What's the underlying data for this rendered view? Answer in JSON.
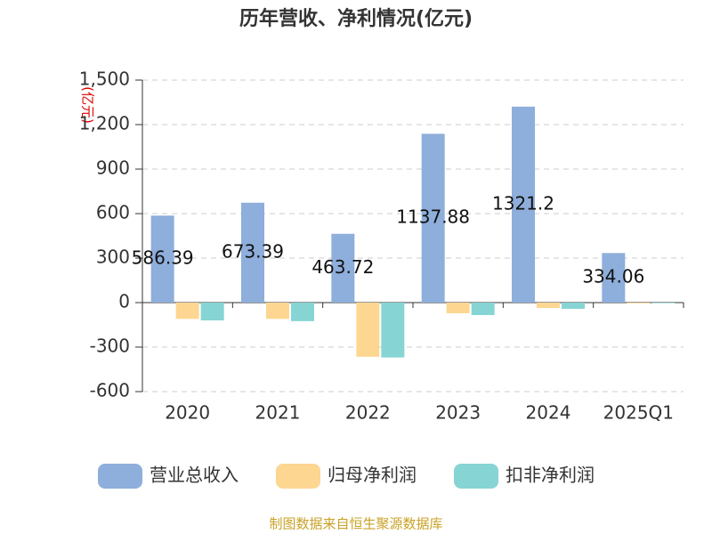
{
  "chart_data": {
    "type": "bar",
    "title": "历年营收、净利情况(亿元)",
    "y_label": "(亿元)",
    "categories": [
      "2020",
      "2021",
      "2022",
      "2023",
      "2024",
      "2025Q1"
    ],
    "series": [
      {
        "name": "营业总收入",
        "color": "#8eaedb",
        "values": [
          586.39,
          673.39,
          463.72,
          1137.88,
          1321.2,
          334.06
        ]
      },
      {
        "name": "归母净利润",
        "color": "#fdd692",
        "values": [
          -110,
          -110,
          -365,
          -72,
          -36,
          -5
        ]
      },
      {
        "name": "扣非净利润",
        "color": "#87d4d4",
        "values": [
          -120,
          -125,
          -370,
          -84,
          -42,
          -4
        ]
      }
    ],
    "ylim": [
      -600,
      1500
    ],
    "yticks": [
      -600,
      -300,
      0,
      300,
      600,
      900,
      {
        "value": 1200,
        "label": "1,200"
      },
      {
        "value": 1500,
        "label": "1,500"
      }
    ],
    "grid": true,
    "footer": "制图数据来自恒生聚源数据库"
  }
}
